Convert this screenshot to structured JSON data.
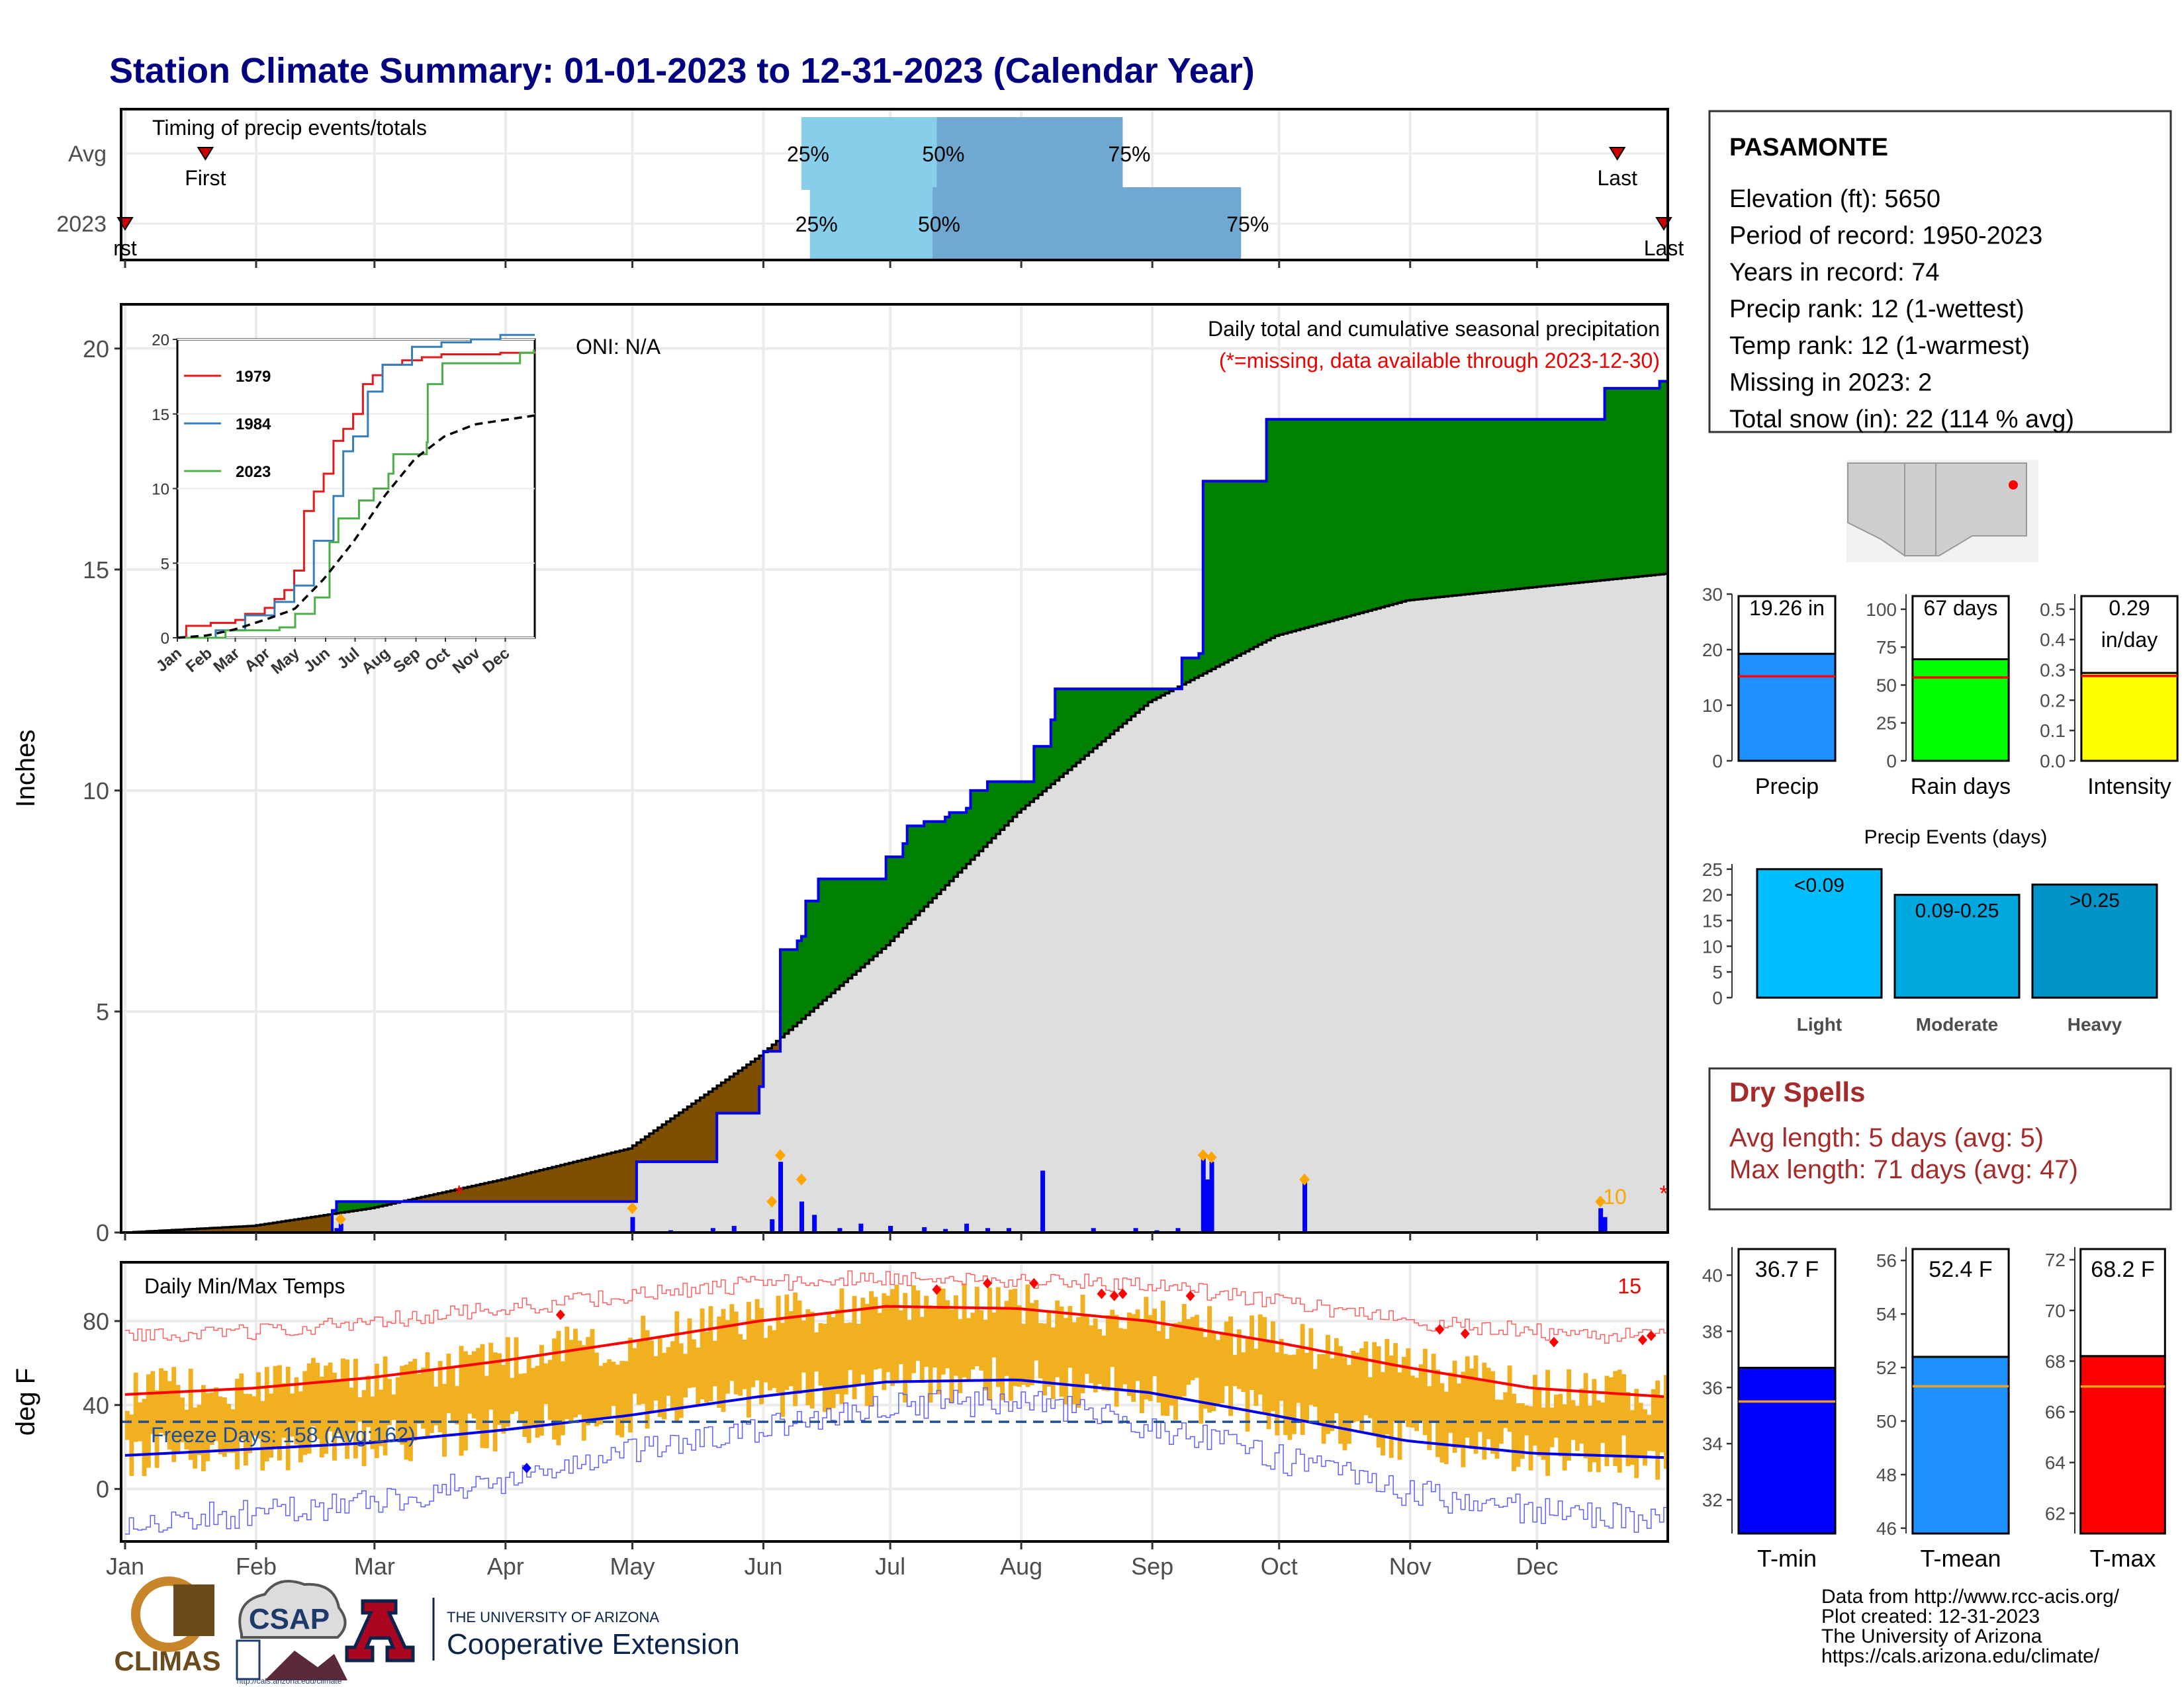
{
  "title": "Station Climate Summary: 01-01-2023 to 12-31-2023 (Calendar Year)",
  "months": [
    "Jan",
    "Feb",
    "Mar",
    "Apr",
    "May",
    "Jun",
    "Jul",
    "Aug",
    "Sep",
    "Oct",
    "Nov",
    "Dec"
  ],
  "timing": {
    "title": "Timing of precip events/totals",
    "rows": [
      "Avg",
      "2023"
    ],
    "first_label": "First",
    "last_label": "Last",
    "first_label_2023": "rst",
    "pct_labels": [
      "25%",
      "50%",
      "75%"
    ],
    "avg": {
      "first_doy": 20,
      "q25_doy": 161,
      "q50_doy": 193,
      "q75_doy": 237,
      "last_doy": 354
    },
    "y2023": {
      "first_doy": 1,
      "q25_doy": 163,
      "q50_doy": 192,
      "q75_doy": 265,
      "last_doy": 365
    }
  },
  "precip": {
    "title": "Daily total and cumulative seasonal precipitation",
    "note": "(*=missing, data available through 2023-12-30)",
    "oni": "ONI: N/A",
    "ylabel": "Inches",
    "ylim": [
      0,
      21
    ],
    "yticks": [
      0,
      5,
      10,
      15,
      20
    ],
    "cumulative_2023": [
      [
        1,
        0
      ],
      [
        50,
        0.5
      ],
      [
        51,
        0.7
      ],
      [
        105,
        0.7
      ],
      [
        121,
        0.7
      ],
      [
        122,
        1.6
      ],
      [
        140,
        1.6
      ],
      [
        141,
        2.7
      ],
      [
        150,
        2.7
      ],
      [
        151,
        3.3
      ],
      [
        152,
        4.1
      ],
      [
        155,
        4.1
      ],
      [
        156,
        6.4
      ],
      [
        160,
        6.6
      ],
      [
        161,
        6.7
      ],
      [
        162,
        7.5
      ],
      [
        165,
        8.0
      ],
      [
        180,
        8.0
      ],
      [
        181,
        8.5
      ],
      [
        185,
        8.8
      ],
      [
        186,
        9.2
      ],
      [
        190,
        9.3
      ],
      [
        195,
        9.4
      ],
      [
        196,
        9.5
      ],
      [
        200,
        9.6
      ],
      [
        201,
        10.0
      ],
      [
        205,
        10.2
      ],
      [
        215,
        10.2
      ],
      [
        216,
        11.0
      ],
      [
        220,
        11.6
      ],
      [
        221,
        12.3
      ],
      [
        250,
        12.3
      ],
      [
        251,
        13.0
      ],
      [
        255,
        13.1
      ],
      [
        256,
        17.0
      ],
      [
        270,
        17.0
      ],
      [
        271,
        18.4
      ],
      [
        350,
        18.4
      ],
      [
        351,
        19.1
      ],
      [
        364,
        19.26
      ]
    ],
    "cumulative_avg": [
      [
        1,
        0
      ],
      [
        31,
        0.15
      ],
      [
        59,
        0.55
      ],
      [
        90,
        1.2
      ],
      [
        120,
        1.9
      ],
      [
        151,
        4.0
      ],
      [
        181,
        6.5
      ],
      [
        212,
        9.5
      ],
      [
        243,
        12.0
      ],
      [
        273,
        13.5
      ],
      [
        304,
        14.3
      ],
      [
        334,
        14.6
      ],
      [
        365,
        14.9
      ]
    ],
    "daily_bars": [
      [
        121,
        0.35
      ],
      [
        154,
        0.3
      ],
      [
        156,
        1.6
      ],
      [
        161,
        0.7
      ],
      [
        164,
        0.4
      ],
      [
        218,
        1.4
      ],
      [
        256,
        1.7
      ],
      [
        257,
        1.2
      ],
      [
        258,
        1.6
      ],
      [
        280,
        1.2
      ],
      [
        350,
        0.55
      ],
      [
        351,
        0.35
      ],
      [
        130,
        0.05
      ],
      [
        140,
        0.1
      ],
      [
        145,
        0.15
      ],
      [
        170,
        0.1
      ],
      [
        175,
        0.2
      ],
      [
        182,
        0.15
      ],
      [
        190,
        0.12
      ],
      [
        195,
        0.08
      ],
      [
        200,
        0.2
      ],
      [
        205,
        0.1
      ],
      [
        210,
        0.1
      ],
      [
        230,
        0.1
      ],
      [
        240,
        0.1
      ],
      [
        245,
        0.05
      ],
      [
        250,
        0.1
      ],
      [
        51,
        0.1
      ],
      [
        52,
        0.2
      ]
    ],
    "diamonds": [
      [
        121,
        0.55
      ],
      [
        154,
        0.7
      ],
      [
        156,
        1.75
      ],
      [
        161,
        1.2
      ],
      [
        256,
        1.75
      ],
      [
        258,
        1.7
      ],
      [
        280,
        1.2
      ],
      [
        350,
        0.7
      ],
      [
        52,
        0.3
      ]
    ],
    "missing_markers": [
      [
        80,
        0.95
      ],
      [
        365,
        0.95
      ]
    ],
    "snow_label": "10",
    "inset": {
      "ylim": [
        0,
        20
      ],
      "yticks": [
        0,
        5,
        10,
        15,
        20
      ],
      "legend": [
        "1979",
        "1984",
        "2023"
      ],
      "colors": [
        "#e41a1c",
        "#377eb8",
        "#4daf4a"
      ],
      "series_1979": [
        [
          1,
          0
        ],
        [
          10,
          0.8
        ],
        [
          35,
          1.0
        ],
        [
          60,
          1.2
        ],
        [
          70,
          1.6
        ],
        [
          90,
          2.0
        ],
        [
          100,
          2.6
        ],
        [
          110,
          3.2
        ],
        [
          120,
          4.5
        ],
        [
          130,
          8.5
        ],
        [
          140,
          9.8
        ],
        [
          150,
          11.0
        ],
        [
          160,
          13.2
        ],
        [
          170,
          14.0
        ],
        [
          180,
          15.0
        ],
        [
          190,
          17.0
        ],
        [
          200,
          17.6
        ],
        [
          210,
          18.3
        ],
        [
          230,
          18.6
        ],
        [
          250,
          18.8
        ],
        [
          270,
          19.0
        ],
        [
          300,
          19.0
        ],
        [
          330,
          19.1
        ],
        [
          365,
          19.2
        ]
      ],
      "series_1984": [
        [
          1,
          0
        ],
        [
          40,
          0.5
        ],
        [
          70,
          1.5
        ],
        [
          100,
          2.4
        ],
        [
          120,
          3.5
        ],
        [
          140,
          6.5
        ],
        [
          160,
          9.5
        ],
        [
          170,
          12.5
        ],
        [
          180,
          13.5
        ],
        [
          195,
          16.5
        ],
        [
          210,
          18.3
        ],
        [
          240,
          19.5
        ],
        [
          270,
          19.8
        ],
        [
          300,
          20.0
        ],
        [
          330,
          20.3
        ],
        [
          365,
          20.3
        ]
      ],
      "series_2023": [
        [
          1,
          0
        ],
        [
          50,
          0.5
        ],
        [
          105,
          0.7
        ],
        [
          121,
          1.6
        ],
        [
          141,
          2.7
        ],
        [
          156,
          6.4
        ],
        [
          165,
          8.0
        ],
        [
          186,
          9.2
        ],
        [
          201,
          10.0
        ],
        [
          216,
          11.0
        ],
        [
          221,
          12.3
        ],
        [
          255,
          13.1
        ],
        [
          256,
          17.0
        ],
        [
          271,
          18.4
        ],
        [
          350,
          19.1
        ],
        [
          364,
          19.26
        ]
      ],
      "series_avg": [
        [
          1,
          0
        ],
        [
          31,
          0.15
        ],
        [
          59,
          0.55
        ],
        [
          90,
          1.2
        ],
        [
          120,
          1.9
        ],
        [
          151,
          4.0
        ],
        [
          181,
          6.5
        ],
        [
          212,
          9.5
        ],
        [
          243,
          12.0
        ],
        [
          273,
          13.5
        ],
        [
          304,
          14.3
        ],
        [
          334,
          14.6
        ],
        [
          365,
          14.9
        ]
      ]
    }
  },
  "temps": {
    "title": "Daily Min/Max Temps",
    "ylabel": "deg F",
    "ylim": [
      -25,
      108
    ],
    "yticks": [
      0,
      40,
      80
    ],
    "freeze_line": 32,
    "freeze_label": "Freeze Days: 158 (Avg:162)",
    "count_label": "15",
    "normal_max": [
      [
        1,
        45
      ],
      [
        31,
        48
      ],
      [
        59,
        53
      ],
      [
        90,
        61
      ],
      [
        120,
        70
      ],
      [
        151,
        80
      ],
      [
        181,
        87
      ],
      [
        212,
        86
      ],
      [
        243,
        80
      ],
      [
        273,
        70
      ],
      [
        304,
        58
      ],
      [
        334,
        48
      ],
      [
        365,
        44
      ]
    ],
    "normal_min": [
      [
        1,
        16
      ],
      [
        31,
        19
      ],
      [
        59,
        22
      ],
      [
        90,
        28
      ],
      [
        120,
        35
      ],
      [
        151,
        44
      ],
      [
        181,
        51
      ],
      [
        212,
        52
      ],
      [
        243,
        46
      ],
      [
        273,
        35
      ],
      [
        304,
        23
      ],
      [
        334,
        17
      ],
      [
        365,
        15
      ]
    ],
    "record_max": [
      [
        1,
        72
      ],
      [
        31,
        75
      ],
      [
        59,
        80
      ],
      [
        90,
        86
      ],
      [
        120,
        92
      ],
      [
        151,
        98
      ],
      [
        181,
        101
      ],
      [
        212,
        100
      ],
      [
        243,
        97
      ],
      [
        273,
        90
      ],
      [
        304,
        80
      ],
      [
        334,
        75
      ],
      [
        365,
        72
      ]
    ],
    "record_min": [
      [
        1,
        -15
      ],
      [
        31,
        -12
      ],
      [
        59,
        -6
      ],
      [
        90,
        4
      ],
      [
        120,
        17
      ],
      [
        151,
        28
      ],
      [
        181,
        40
      ],
      [
        212,
        42
      ],
      [
        243,
        30
      ],
      [
        273,
        15
      ],
      [
        304,
        -2
      ],
      [
        334,
        -10
      ],
      [
        365,
        -15
      ]
    ],
    "record_diamonds_max": [
      [
        104,
        83
      ],
      [
        193,
        95
      ],
      [
        205,
        98
      ],
      [
        216,
        98
      ],
      [
        232,
        93
      ],
      [
        235,
        92
      ],
      [
        237,
        93
      ],
      [
        253,
        92
      ],
      [
        312,
        76
      ],
      [
        318,
        74
      ],
      [
        339,
        70
      ],
      [
        360,
        71
      ],
      [
        362,
        73
      ]
    ],
    "record_diamonds_min": [
      [
        96,
        10
      ]
    ]
  },
  "station": {
    "name": "PASAMONTE",
    "lines": [
      "Elevation (ft): 5650",
      "Period of record: 1950-2023",
      "Years in record: 74",
      "Precip rank: 12 (1-wettest)",
      "Temp rank: 12 (1-warmest)",
      "Missing in 2023: 2",
      "Total snow (in): 22 (114 % avg)"
    ]
  },
  "summary_bars": [
    {
      "name": "Precip",
      "label": "19.26 in",
      "value": 19.26,
      "avg": 15.2,
      "ylim": [
        0,
        30
      ],
      "yticks": [
        0,
        10,
        20,
        30
      ],
      "color": "#1e90ff"
    },
    {
      "name": "Rain days",
      "label": "67 days",
      "value": 67,
      "avg": 55,
      "ylim": [
        0,
        110
      ],
      "yticks": [
        0,
        25,
        50,
        75,
        100
      ],
      "color": "#00ff00"
    },
    {
      "name": "Intensity",
      "label": "0.29",
      "label2": "in/day",
      "value": 0.29,
      "avg": 0.28,
      "ylim": [
        0,
        0.55
      ],
      "yticks": [
        0.0,
        0.1,
        0.2,
        0.3,
        0.4,
        0.5
      ],
      "color": "#ffff00"
    }
  ],
  "events": {
    "title": "Precip Events (days)",
    "ylim": [
      0,
      26
    ],
    "yticks": [
      0,
      5,
      10,
      15,
      20,
      25
    ],
    "categories": [
      "Light",
      "Moderate",
      "Heavy"
    ],
    "ranges": [
      "<0.09",
      "0.09-0.25",
      ">0.25"
    ],
    "values": [
      25,
      20,
      22
    ],
    "colors": [
      "#00bfff",
      "#00a8e0",
      "#0094c8"
    ]
  },
  "dry_spells": {
    "title": "Dry Spells",
    "lines": [
      "Avg length: 5 days (avg: 5)",
      "Max length: 71 days (avg: 47)"
    ]
  },
  "temp_bars": [
    {
      "name": "T-min",
      "label": "36.7 F",
      "value": 36.7,
      "avg": 35.5,
      "ylim": [
        30.8,
        41
      ],
      "yticks": [
        32,
        34,
        36,
        38,
        40
      ],
      "color": "#0000ff"
    },
    {
      "name": "T-mean",
      "label": "52.4 F",
      "value": 52.4,
      "avg": 51.3,
      "ylim": [
        45.8,
        56.5
      ],
      "yticks": [
        46,
        48,
        50,
        52,
        54,
        56
      ],
      "color": "#1e90ff"
    },
    {
      "name": "T-max",
      "label": "68.2 F",
      "value": 68.2,
      "avg": 67.0,
      "ylim": [
        61.2,
        72.5
      ],
      "yticks": [
        62,
        64,
        66,
        68,
        70,
        72
      ],
      "color": "#ff0000"
    }
  ],
  "footer": {
    "lines": [
      "Data from http://www.rcc-acis.org/",
      "Plot created: 12-31-2023",
      "The University of Arizona",
      "https://cals.arizona.edu/climate/"
    ],
    "logos": {
      "climas": "CLIMAS",
      "csap": "CSAP",
      "csap_url": "http://cals.arizona.edu/climate",
      "ua_top": "THE UNIVERSITY OF ARIZONA",
      "ua_bottom": "Cooperative Extension"
    }
  }
}
